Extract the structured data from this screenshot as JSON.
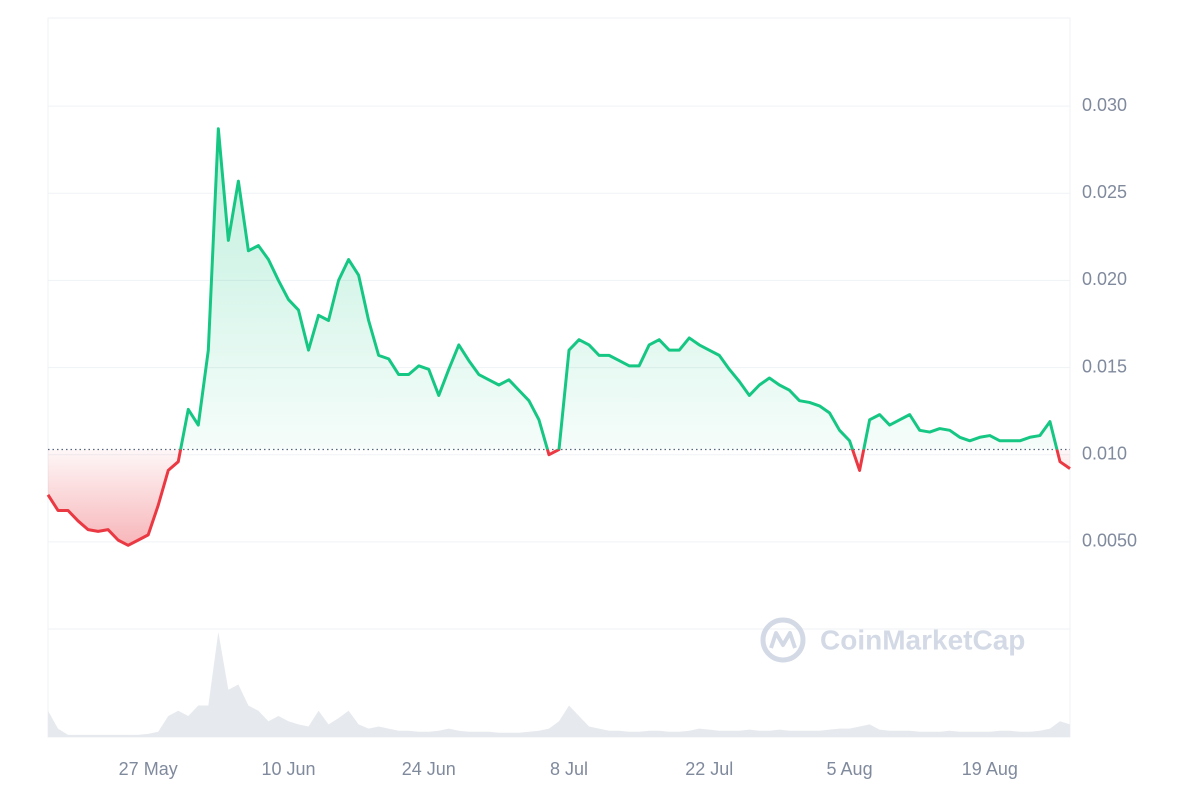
{
  "chart_data": {
    "type": "baseline-line",
    "watermark": "CoinMarketCap",
    "up_color": "#16c784",
    "down_color": "#ea3943",
    "volume_color": "#e6e9ee",
    "grid": true,
    "baseline": 0.0103,
    "ylim": [
      0,
      0.035
    ],
    "yticks": [
      {
        "value": 0.03,
        "label": "0.030"
      },
      {
        "value": 0.025,
        "label": "0.025"
      },
      {
        "value": 0.02,
        "label": "0.020"
      },
      {
        "value": 0.015,
        "label": "0.015"
      },
      {
        "value": 0.01,
        "label": "0.010"
      },
      {
        "value": 0.005,
        "label": "0.0050"
      }
    ],
    "xticks": [
      "27 May",
      "10 Jun",
      "24 Jun",
      "8 Jul",
      "22 Jul",
      "5 Aug",
      "19 Aug"
    ],
    "x": [
      "17 May",
      "18 May",
      "19 May",
      "20 May",
      "21 May",
      "22 May",
      "23 May",
      "24 May",
      "25 May",
      "26 May",
      "27 May",
      "28 May",
      "29 May",
      "30 May",
      "31 May",
      "1 Jun",
      "2 Jun",
      "3 Jun",
      "4 Jun",
      "5 Jun",
      "6 Jun",
      "7 Jun",
      "8 Jun",
      "9 Jun",
      "10 Jun",
      "11 Jun",
      "12 Jun",
      "13 Jun",
      "14 Jun",
      "15 Jun",
      "16 Jun",
      "17 Jun",
      "18 Jun",
      "19 Jun",
      "20 Jun",
      "21 Jun",
      "22 Jun",
      "23 Jun",
      "24 Jun",
      "25 Jun",
      "26 Jun",
      "27 Jun",
      "28 Jun",
      "29 Jun",
      "30 Jun",
      "1 Jul",
      "2 Jul",
      "3 Jul",
      "4 Jul",
      "5 Jul",
      "6 Jul",
      "7 Jul",
      "8 Jul",
      "9 Jul",
      "10 Jul",
      "11 Jul",
      "12 Jul",
      "13 Jul",
      "14 Jul",
      "15 Jul",
      "16 Jul",
      "17 Jul",
      "18 Jul",
      "19 Jul",
      "20 Jul",
      "21 Jul",
      "22 Jul",
      "23 Jul",
      "24 Jul",
      "25 Jul",
      "26 Jul",
      "27 Jul",
      "28 Jul",
      "29 Jul",
      "30 Jul",
      "31 Jul",
      "1 Aug",
      "2 Aug",
      "3 Aug",
      "4 Aug",
      "5 Aug",
      "6 Aug",
      "7 Aug",
      "8 Aug",
      "9 Aug",
      "10 Aug",
      "11 Aug",
      "12 Aug",
      "13 Aug",
      "14 Aug",
      "15 Aug",
      "16 Aug",
      "17 Aug",
      "18 Aug",
      "19 Aug",
      "20 Aug",
      "21 Aug",
      "22 Aug",
      "23 Aug",
      "24 Aug",
      "25 Aug",
      "26 Aug",
      "27 Aug"
    ],
    "values": [
      0.0077,
      0.0068,
      0.0068,
      0.0062,
      0.0057,
      0.0056,
      0.0057,
      0.0051,
      0.0048,
      0.0051,
      0.0054,
      0.0071,
      0.0091,
      0.0096,
      0.0126,
      0.0117,
      0.016,
      0.0287,
      0.0223,
      0.0257,
      0.0217,
      0.022,
      0.0212,
      0.02,
      0.0189,
      0.0183,
      0.016,
      0.018,
      0.0177,
      0.02,
      0.0212,
      0.0203,
      0.0177,
      0.0157,
      0.0155,
      0.0146,
      0.0146,
      0.0151,
      0.0149,
      0.0134,
      0.0149,
      0.0163,
      0.0154,
      0.0146,
      0.0143,
      0.014,
      0.0143,
      0.0137,
      0.0131,
      0.012,
      0.01,
      0.0103,
      0.016,
      0.0166,
      0.0163,
      0.0157,
      0.0157,
      0.0154,
      0.0151,
      0.0151,
      0.0163,
      0.0166,
      0.016,
      0.016,
      0.0167,
      0.0163,
      0.016,
      0.0157,
      0.0149,
      0.0142,
      0.0134,
      0.014,
      0.0144,
      0.014,
      0.0137,
      0.0131,
      0.013,
      0.0128,
      0.0124,
      0.0114,
      0.0108,
      0.0091,
      0.012,
      0.0123,
      0.0117,
      0.012,
      0.0123,
      0.0114,
      0.0113,
      0.0115,
      0.0114,
      0.011,
      0.0108,
      0.011,
      0.0111,
      0.0108,
      0.0108,
      0.0108,
      0.011,
      0.0111,
      0.0119,
      0.0096,
      0.0092
    ],
    "volume": {
      "ylim": [
        0,
        100
      ],
      "values": [
        25,
        8,
        2,
        2,
        2,
        2,
        2,
        2,
        2,
        2,
        3,
        5,
        20,
        25,
        20,
        30,
        30,
        100,
        45,
        50,
        30,
        25,
        15,
        20,
        15,
        12,
        10,
        25,
        12,
        18,
        25,
        12,
        8,
        10,
        8,
        6,
        6,
        5,
        5,
        6,
        8,
        6,
        5,
        5,
        5,
        4,
        4,
        4,
        5,
        6,
        8,
        15,
        30,
        20,
        10,
        8,
        6,
        6,
        5,
        5,
        6,
        6,
        5,
        5,
        6,
        8,
        7,
        6,
        6,
        6,
        7,
        6,
        6,
        7,
        6,
        6,
        6,
        6,
        7,
        8,
        8,
        10,
        12,
        7,
        6,
        6,
        6,
        5,
        5,
        5,
        6,
        5,
        5,
        5,
        5,
        6,
        6,
        5,
        5,
        6,
        8,
        15,
        12
      ]
    }
  }
}
